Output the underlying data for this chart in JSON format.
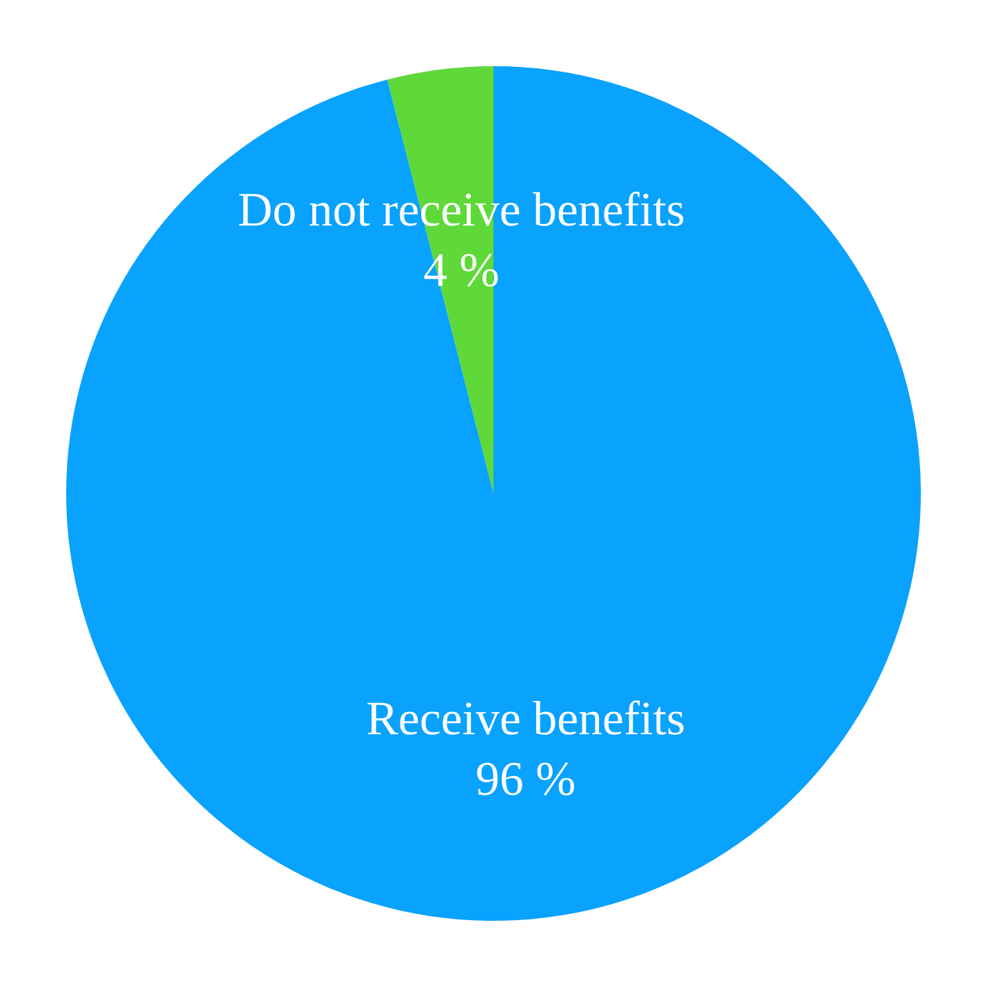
{
  "chart_data": {
    "type": "pie",
    "categories": [
      "Do not receive benefits",
      "Receive benefits"
    ],
    "values": [
      4,
      96
    ],
    "colors": [
      "#5fd83a",
      "#09a2fd"
    ],
    "value_labels": [
      "4 %",
      "96 %"
    ]
  }
}
